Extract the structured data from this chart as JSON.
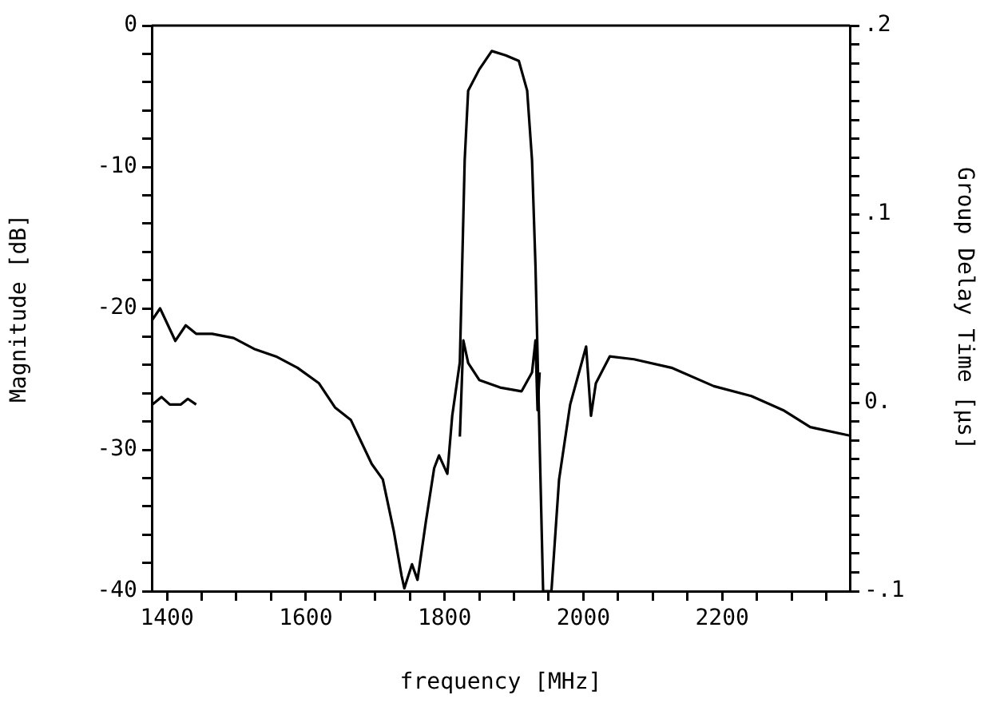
{
  "chart_data": {
    "type": "line",
    "xlabel": "frequency [MHz]",
    "ylabel": "Magnitude [dB]",
    "y2label": "Group Delay Time [µs]",
    "xlim": [
      1378,
      2384
    ],
    "ylim": [
      -40,
      0
    ],
    "y2lim": [
      -0.1,
      0.2
    ],
    "xticks": [
      1400,
      {
        "value": 1450,
        "label": null
      },
      1600,
      {
        "value": 1500,
        "label": null
      },
      {
        "value": 1550,
        "label": null
      },
      {
        "value": 1650,
        "label": null
      },
      {
        "value": 1700,
        "label": null
      },
      {
        "value": 1750,
        "label": null
      },
      1800,
      {
        "value": 1850,
        "label": null
      },
      {
        "value": 1900,
        "label": null
      },
      {
        "value": 1950,
        "label": null
      },
      2000,
      {
        "value": 2050,
        "label": null
      },
      {
        "value": 2100,
        "label": null
      },
      {
        "value": 2150,
        "label": null
      },
      2200,
      {
        "value": 2250,
        "label": null
      },
      {
        "value": 2300,
        "label": null
      },
      {
        "value": 2350,
        "label": null
      }
    ],
    "yticks": [
      -40,
      {
        "value": -38,
        "label": null
      },
      {
        "value": -36,
        "label": null
      },
      {
        "value": -34,
        "label": null
      },
      {
        "value": -32,
        "label": null
      },
      -30,
      {
        "value": -28,
        "label": null
      },
      {
        "value": -26,
        "label": null
      },
      {
        "value": -24,
        "label": null
      },
      {
        "value": -22,
        "label": null
      },
      -20,
      {
        "value": -18,
        "label": null
      },
      {
        "value": -16,
        "label": null
      },
      {
        "value": -14,
        "label": null
      },
      {
        "value": -12,
        "label": null
      },
      -10,
      {
        "value": -8,
        "label": null
      },
      {
        "value": -6,
        "label": null
      },
      {
        "value": -4,
        "label": null
      },
      {
        "value": -2,
        "label": null
      },
      0
    ],
    "y2ticks": [
      {
        "value": -0.1,
        "label": "-.1"
      },
      {
        "value": -0.09,
        "label": null
      },
      {
        "value": -0.08,
        "label": null
      },
      {
        "value": -0.07,
        "label": null
      },
      {
        "value": -0.06,
        "label": null
      },
      {
        "value": -0.05,
        "label": null
      },
      {
        "value": -0.04,
        "label": null
      },
      {
        "value": -0.03,
        "label": null
      },
      {
        "value": -0.02,
        "label": null
      },
      {
        "value": -0.01,
        "label": null
      },
      {
        "value": 0,
        "label": "0."
      },
      {
        "value": 0.01,
        "label": null
      },
      {
        "value": 0.02,
        "label": null
      },
      {
        "value": 0.03,
        "label": null
      },
      {
        "value": 0.04,
        "label": null
      },
      {
        "value": 0.05,
        "label": null
      },
      {
        "value": 0.06,
        "label": null
      },
      {
        "value": 0.07,
        "label": null
      },
      {
        "value": 0.08,
        "label": null
      },
      {
        "value": 0.09,
        "label": null
      },
      {
        "value": 0.1,
        "label": ".1"
      },
      {
        "value": 0.11,
        "label": null
      },
      {
        "value": 0.12,
        "label": null
      },
      {
        "value": 0.13,
        "label": null
      },
      {
        "value": 0.14,
        "label": null
      },
      {
        "value": 0.15,
        "label": null
      },
      {
        "value": 0.16,
        "label": null
      },
      {
        "value": 0.17,
        "label": null
      },
      {
        "value": 0.18,
        "label": null
      },
      {
        "value": 0.19,
        "label": null
      },
      {
        "value": 0.2,
        "label": ".2"
      }
    ],
    "grid": false,
    "legend": false,
    "marker": "none",
    "line_style": "solid",
    "series": [
      {
        "color": "#000000",
        "x": [
          1379,
          1390,
          1412,
          1427,
          1442,
          1465,
          1496,
          1527,
          1557,
          1588,
          1619,
          1642,
          1665,
          1695,
          1711,
          1727,
          1738,
          1742,
          1753,
          1761,
          1773,
          1785,
          1792,
          1804,
          1811,
          1822,
          1829,
          1834,
          1850,
          1868,
          1888,
          1907,
          1919,
          1926,
          1931,
          1942,
          1954,
          1965,
          1981,
          2004,
          2011,
          2018,
          2038,
          2073,
          2127,
          2188,
          2242,
          2288,
          2327,
          2384
        ],
        "values": [
          -20.8,
          -20.0,
          -22.3,
          -21.2,
          -21.8,
          -21.8,
          -22.1,
          -22.9,
          -23.4,
          -24.2,
          -25.3,
          -27.0,
          -27.9,
          -31.0,
          -32.1,
          -35.8,
          -38.9,
          -39.8,
          -38.1,
          -39.2,
          -35.1,
          -31.3,
          -30.4,
          -31.7,
          -27.6,
          -23.8,
          -9.5,
          -4.6,
          -3.1,
          -1.8,
          -2.1,
          -2.5,
          -4.6,
          -9.5,
          -17,
          -40,
          -40,
          -32.1,
          -26.8,
          -22.7,
          -27.6,
          -25.3,
          -23.4,
          -23.6,
          -24.2,
          -25.5,
          -26.2,
          -27.2,
          -28.4,
          -29.0
        ]
      },
      {
        "color": "#000000",
        "axis": "y2",
        "x": [
          1379,
          1392,
          1404,
          1420,
          1430,
          1442,
          1600,
          1822,
          1827,
          1834,
          1850,
          1880,
          1911,
          1926,
          1931,
          1934,
          1937
        ],
        "values": [
          -0.001,
          0.003,
          -0.001,
          -0.001,
          0.002,
          -0.001,
          null,
          -0.018,
          0.033,
          0.021,
          0.012,
          0.008,
          0.006,
          0.016,
          0.033,
          -0.004,
          0.016
        ]
      }
    ]
  }
}
